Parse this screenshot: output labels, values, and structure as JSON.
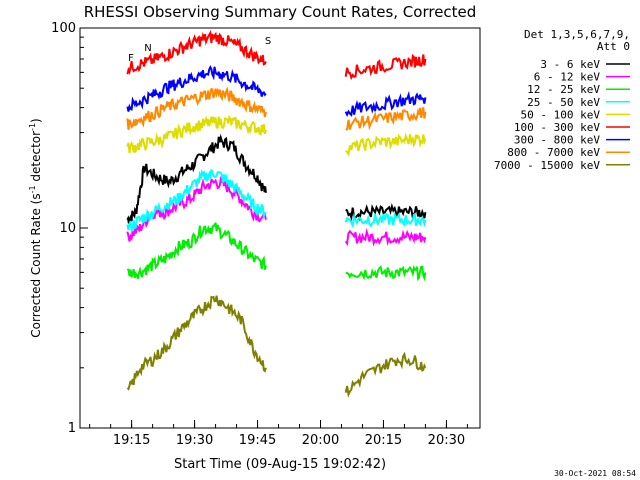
{
  "chart_data": {
    "type": "line",
    "title": "RHESSI Observing Summary Count Rates, Corrected",
    "xlabel": "Start Time (09-Aug-15 19:02:42)",
    "ylabel": "Corrected Count Rate (s⁻¹ detector⁻¹)",
    "ylabel_main": "Corrected Count Rate (s",
    "ylabel_mid": " detector",
    "ylabel_end": ")",
    "ylabel_sup": "-1",
    "yscale": "log",
    "ylim": [
      1,
      100
    ],
    "xlim": [
      "19:02:42",
      "20:38:00"
    ],
    "x_ticks": [
      "19:15",
      "19:30",
      "19:45",
      "20:00",
      "20:15",
      "20:30"
    ],
    "y_ticks": [
      "1",
      "10",
      "100"
    ],
    "timestamp": "30-Oct-2021 08:54",
    "legend": {
      "header": [
        "Det 1,3,5,6,7,9,",
        "Att 0"
      ],
      "placement": "top-right",
      "entries": [
        {
          "label": "3 - 6 keV",
          "color": "#000000"
        },
        {
          "label": "6 - 12 keV",
          "color": "#ff00ff"
        },
        {
          "label": "12 - 25 keV",
          "color": "#00ee00"
        },
        {
          "label": "25 - 50 keV",
          "color": "#00ffff"
        },
        {
          "label": "50 - 100 keV",
          "color": "#dddd00"
        },
        {
          "label": "100 - 300 keV",
          "color": "#ff0000"
        },
        {
          "label": "300 - 800 keV",
          "color": "#0000ff"
        },
        {
          "label": "800 - 7000 keV",
          "color": "#ff8800"
        },
        {
          "label": "7000 - 15000 keV",
          "color": "#808000"
        }
      ]
    },
    "annotations": [
      {
        "label": "N",
        "color": "#00ffff"
      },
      {
        "label": "F",
        "color": "#ff0000"
      },
      {
        "label": "S",
        "color": "#ff8800"
      }
    ],
    "series": [
      {
        "name": "3 - 6 keV",
        "color": "#000000",
        "segments": [
          {
            "x": [
              "19:14",
              "19:16",
              "19:18",
              "19:21",
              "19:24",
              "19:27",
              "19:30",
              "19:33",
              "19:36",
              "19:39",
              "19:42",
              "19:45",
              "19:47"
            ],
            "y": [
              11,
              12,
              20,
              18,
              17,
              19,
              21,
              24,
              27,
              26,
              21,
              18,
              15
            ]
          },
          {
            "x": [
              "20:06",
              "20:10",
              "20:14",
              "20:18",
              "20:22",
              "20:25"
            ],
            "y": [
              12,
              12,
              12,
              12,
              12,
              12
            ]
          }
        ]
      },
      {
        "name": "6 - 12 keV",
        "color": "#ff00ff",
        "segments": [
          {
            "x": [
              "19:14",
              "19:17",
              "19:20",
              "19:23",
              "19:26",
              "19:29",
              "19:32",
              "19:35",
              "19:38",
              "19:41",
              "19:44",
              "19:47"
            ],
            "y": [
              9,
              10,
              12,
              12,
              13,
              14,
              16,
              17,
              16,
              14,
              12,
              11
            ]
          },
          {
            "x": [
              "20:06",
              "20:10",
              "20:14",
              "20:18",
              "20:22",
              "20:25"
            ],
            "y": [
              9,
              9,
              9,
              9,
              9,
              9
            ]
          }
        ]
      },
      {
        "name": "12 - 25 keV",
        "color": "#00ee00",
        "segments": [
          {
            "x": [
              "19:14",
              "19:17",
              "19:20",
              "19:23",
              "19:26",
              "19:29",
              "19:32",
              "19:35",
              "19:38",
              "19:41",
              "19:44",
              "19:47"
            ],
            "y": [
              6,
              6,
              6.5,
              7,
              8,
              8.5,
              10,
              10,
              9,
              8,
              7,
              6.5
            ]
          },
          {
            "x": [
              "20:06",
              "20:10",
              "20:14",
              "20:18",
              "20:22",
              "20:25"
            ],
            "y": [
              6,
              6,
              6,
              6,
              6,
              6
            ]
          }
        ]
      },
      {
        "name": "25 - 50 keV",
        "color": "#00ffff",
        "segments": [
          {
            "x": [
              "19:14",
              "19:17",
              "19:20",
              "19:23",
              "19:26",
              "19:29",
              "19:32",
              "19:35",
              "19:38",
              "19:41",
              "19:44",
              "19:47"
            ],
            "y": [
              10,
              11,
              12,
              13,
              14,
              16,
              18,
              19,
              17,
              15,
              13,
              12
            ]
          },
          {
            "x": [
              "20:06",
              "20:10",
              "20:14",
              "20:18",
              "20:22",
              "20:25"
            ],
            "y": [
              11,
              11,
              11,
              11,
              11,
              11
            ]
          }
        ]
      },
      {
        "name": "50 - 100 keV",
        "color": "#dddd00",
        "segments": [
          {
            "x": [
              "19:14",
              "19:17",
              "19:20",
              "19:23",
              "19:26",
              "19:29",
              "19:32",
              "19:35",
              "19:38",
              "19:41",
              "19:44",
              "19:47"
            ],
            "y": [
              25,
              26,
              27,
              28,
              30,
              32,
              33,
              34,
              34,
              33,
              32,
              31
            ]
          },
          {
            "x": [
              "20:06",
              "20:10",
              "20:14",
              "20:18",
              "20:22",
              "20:25"
            ],
            "y": [
              25,
              26,
              27,
              27,
              28,
              28
            ]
          }
        ]
      },
      {
        "name": "100 - 300 keV",
        "color": "#ff0000",
        "segments": [
          {
            "x": [
              "19:14",
              "19:17",
              "19:20",
              "19:23",
              "19:26",
              "19:29",
              "19:32",
              "19:35",
              "19:38",
              "19:41",
              "19:44",
              "19:47"
            ],
            "y": [
              63,
              66,
              69,
              73,
              78,
              83,
              88,
              90,
              86,
              80,
              73,
              68
            ]
          },
          {
            "x": [
              "20:06",
              "20:10",
              "20:14",
              "20:18",
              "20:22",
              "20:25"
            ],
            "y": [
              60,
              62,
              64,
              66,
              68,
              70
            ]
          }
        ]
      },
      {
        "name": "300 - 800 keV",
        "color": "#0000ff",
        "segments": [
          {
            "x": [
              "19:14",
              "19:17",
              "19:20",
              "19:23",
              "19:26",
              "19:29",
              "19:32",
              "19:35",
              "19:38",
              "19:41",
              "19:44",
              "19:47"
            ],
            "y": [
              40,
              43,
              46,
              50,
              53,
              56,
              59,
              60,
              58,
              54,
              50,
              47
            ]
          },
          {
            "x": [
              "20:06",
              "20:10",
              "20:14",
              "20:18",
              "20:22",
              "20:25"
            ],
            "y": [
              38,
              40,
              41,
              43,
              44,
              45
            ]
          }
        ]
      },
      {
        "name": "800 - 7000 keV",
        "color": "#ff8800",
        "segments": [
          {
            "x": [
              "19:14",
              "19:17",
              "19:20",
              "19:23",
              "19:26",
              "19:29",
              "19:32",
              "19:35",
              "19:38",
              "19:41",
              "19:44",
              "19:47"
            ],
            "y": [
              33,
              35,
              37,
              40,
              42,
              44,
              46,
              48,
              46,
              43,
              40,
              38
            ]
          },
          {
            "x": [
              "20:06",
              "20:10",
              "20:14",
              "20:18",
              "20:22",
              "20:25"
            ],
            "y": [
              33,
              34,
              35,
              36,
              37,
              38
            ]
          }
        ]
      },
      {
        "name": "7000 - 15000 keV",
        "color": "#808000",
        "segments": [
          {
            "x": [
              "19:14",
              "19:17",
              "19:20",
              "19:23",
              "19:26",
              "19:29",
              "19:32",
              "19:35",
              "19:38",
              "19:41",
              "19:44",
              "19:47"
            ],
            "y": [
              1.5,
              2,
              2.2,
              2.5,
              3,
              3.5,
              4,
              4.5,
              4,
              3.5,
              2.5,
              2
            ]
          },
          {
            "x": [
              "20:06",
              "20:10",
              "20:14",
              "20:18",
              "20:22",
              "20:25"
            ],
            "y": [
              1.5,
              1.8,
              2,
              2.2,
              2.2,
              2
            ]
          }
        ]
      }
    ]
  }
}
